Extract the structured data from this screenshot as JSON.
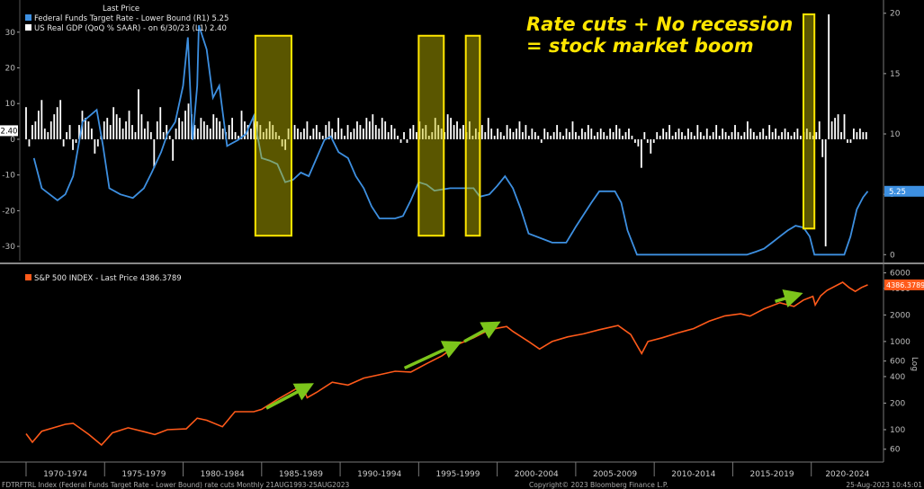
{
  "chart_data": [
    {
      "type": "line",
      "legend_header": "Last Price",
      "legend_placement": "top-left",
      "series": [
        {
          "name": "Federal Funds Target Rate - Lower Bound  (R1) 5.25",
          "axis": "right",
          "color": "#3d8fe0",
          "last_label": "5.25",
          "points": [
            [
              1970.5,
              8.0
            ],
            [
              1971.0,
              5.5
            ],
            [
              1971.5,
              5.0
            ],
            [
              1972.0,
              4.5
            ],
            [
              1972.5,
              5.0
            ],
            [
              1973.0,
              6.5
            ],
            [
              1973.6,
              11.0
            ],
            [
              1974.5,
              12.0
            ],
            [
              1974.9,
              9.0
            ],
            [
              1975.3,
              5.5
            ],
            [
              1976.0,
              5.0
            ],
            [
              1976.8,
              4.7
            ],
            [
              1977.5,
              5.5
            ],
            [
              1978.0,
              6.8
            ],
            [
              1978.6,
              8.5
            ],
            [
              1979.0,
              10.0
            ],
            [
              1979.5,
              11.0
            ],
            [
              1980.0,
              14.0
            ],
            [
              1980.3,
              18.0
            ],
            [
              1980.6,
              9.5
            ],
            [
              1980.9,
              14.0
            ],
            [
              1981.0,
              19.0
            ],
            [
              1981.5,
              17.0
            ],
            [
              1981.9,
              13.0
            ],
            [
              1982.3,
              14.0
            ],
            [
              1982.8,
              9.0
            ],
            [
              1983.5,
              9.5
            ],
            [
              1984.0,
              10.0
            ],
            [
              1984.5,
              11.5
            ],
            [
              1985.0,
              8.0
            ],
            [
              1985.5,
              7.8
            ],
            [
              1986.0,
              7.5
            ],
            [
              1986.5,
              6.0
            ],
            [
              1987.0,
              6.2
            ],
            [
              1987.5,
              6.8
            ],
            [
              1988.0,
              6.5
            ],
            [
              1988.5,
              8.0
            ],
            [
              1989.0,
              9.5
            ],
            [
              1989.4,
              9.8
            ],
            [
              1989.9,
              8.5
            ],
            [
              1990.5,
              8.0
            ],
            [
              1991.0,
              6.5
            ],
            [
              1991.5,
              5.5
            ],
            [
              1992.0,
              4.0
            ],
            [
              1992.5,
              3.0
            ],
            [
              1993.5,
              3.0
            ],
            [
              1994.0,
              3.2
            ],
            [
              1994.5,
              4.5
            ],
            [
              1995.0,
              6.0
            ],
            [
              1995.5,
              5.8
            ],
            [
              1996.0,
              5.3
            ],
            [
              1997.0,
              5.5
            ],
            [
              1998.5,
              5.5
            ],
            [
              1998.9,
              4.8
            ],
            [
              1999.5,
              5.0
            ],
            [
              2000.0,
              5.7
            ],
            [
              2000.5,
              6.5
            ],
            [
              2001.0,
              5.5
            ],
            [
              2001.5,
              3.8
            ],
            [
              2002.0,
              1.75
            ],
            [
              2003.0,
              1.25
            ],
            [
              2003.5,
              1.0
            ],
            [
              2004.4,
              1.0
            ],
            [
              2005.0,
              2.3
            ],
            [
              2006.0,
              4.3
            ],
            [
              2006.5,
              5.25
            ],
            [
              2007.5,
              5.25
            ],
            [
              2007.9,
              4.3
            ],
            [
              2008.3,
              2.0
            ],
            [
              2008.9,
              0.0
            ],
            [
              2015.9,
              0.0
            ],
            [
              2016.5,
              0.25
            ],
            [
              2017.0,
              0.5
            ],
            [
              2017.5,
              1.0
            ],
            [
              2018.0,
              1.5
            ],
            [
              2018.5,
              2.0
            ],
            [
              2019.0,
              2.4
            ],
            [
              2019.5,
              2.25
            ],
            [
              2019.9,
              1.5
            ],
            [
              2020.2,
              0.0
            ],
            [
              2022.1,
              0.0
            ],
            [
              2022.5,
              1.5
            ],
            [
              2022.9,
              3.75
            ],
            [
              2023.3,
              4.75
            ],
            [
              2023.6,
              5.25
            ]
          ]
        },
        {
          "name": "US Real GDP (QoQ % SAAR) - on 6/30/23  (L1) 2.40",
          "axis": "left",
          "color": "#ffffff",
          "last_label": "2.40",
          "values": [
            9,
            -2,
            4,
            5,
            8,
            11,
            3,
            2,
            5,
            7,
            9,
            11,
            -2,
            2,
            4,
            -3,
            -1,
            4,
            8,
            6,
            5,
            3,
            -4,
            -2,
            1,
            5,
            6,
            4,
            9,
            7,
            6,
            3,
            5,
            8,
            4,
            2,
            14,
            7,
            3,
            5,
            2,
            -8,
            5,
            9,
            2,
            4,
            1,
            -6,
            3,
            6,
            5,
            8,
            10,
            7,
            4,
            3,
            6,
            5,
            4,
            3,
            7,
            6,
            5,
            3,
            2,
            4,
            6,
            2,
            1,
            8,
            5,
            4,
            3,
            6,
            5,
            4,
            2,
            3,
            5,
            4,
            2,
            1,
            -2,
            -3,
            3,
            2,
            4,
            3,
            2,
            3,
            5,
            1,
            3,
            4,
            2,
            1,
            4,
            5,
            3,
            2,
            6,
            3,
            1,
            4,
            2,
            3,
            5,
            4,
            3,
            6,
            5,
            7,
            4,
            3,
            6,
            5,
            2,
            4,
            3,
            1,
            -1,
            2,
            -1,
            3,
            4,
            2,
            5,
            3,
            4,
            1,
            2,
            6,
            4,
            3,
            2,
            7,
            6,
            4,
            5,
            3,
            4,
            2,
            5,
            1,
            3,
            2,
            4,
            2,
            6,
            3,
            1,
            3,
            2,
            1,
            4,
            3,
            2,
            3,
            5,
            2,
            4,
            1,
            3,
            2,
            1,
            -1,
            3,
            2,
            1,
            2,
            4,
            2,
            1,
            3,
            2,
            5,
            2,
            1,
            3,
            2,
            4,
            3,
            1,
            2,
            3,
            2,
            1,
            3,
            2,
            4,
            3,
            1,
            2,
            3,
            1,
            -1,
            -2,
            -8,
            2,
            -1,
            -4,
            -1,
            2,
            1,
            3,
            2,
            4,
            1,
            2,
            3,
            2,
            1,
            3,
            2,
            1,
            4,
            2,
            1,
            3,
            1,
            2,
            4,
            1,
            3,
            2,
            1,
            2,
            4,
            2,
            1,
            2,
            5,
            3,
            2,
            1,
            2,
            3,
            1,
            4,
            2,
            3,
            1,
            2,
            3,
            2,
            1,
            2,
            3,
            1,
            2,
            3,
            2,
            1,
            2,
            5,
            -5,
            -30,
            35,
            5,
            6,
            7,
            2,
            7,
            -1,
            -1,
            3,
            2,
            3,
            2,
            2
          ]
        }
      ],
      "y_left": {
        "ticks": [
          30,
          20,
          10,
          0,
          -10,
          -20,
          -30
        ],
        "range": [
          -34,
          38
        ]
      },
      "y_right": {
        "ticks": [
          20,
          15,
          10,
          5,
          0
        ],
        "range": [
          -0.5,
          20.8
        ]
      },
      "x_range": [
        1969.6,
        2024.6
      ],
      "highlight_boxes": [
        {
          "x0": 1984.6,
          "x1": 1986.9,
          "y0": -27,
          "y1": 29
        },
        {
          "x0": 1995.0,
          "x1": 1996.6,
          "y0": -27,
          "y1": 29
        },
        {
          "x0": 1998.0,
          "x1": 1998.9,
          "y0": -27,
          "y1": 29
        },
        {
          "x0": 2019.5,
          "x1": 2020.2,
          "y0": -25,
          "y1": 35
        }
      ],
      "annotation": [
        "Rate cuts + No recession",
        "= stock market boom"
      ],
      "annotation_color": "#ffe600"
    },
    {
      "type": "line",
      "scale": "log",
      "series": [
        {
          "name": "S&P 500 INDEX - Last Price 4386.3789",
          "color": "#ff5a1a",
          "last_label": "4386.3789",
          "points": [
            [
              1970.0,
              90
            ],
            [
              1970.4,
              72
            ],
            [
              1971.0,
              96
            ],
            [
              1972.5,
              115
            ],
            [
              1973.0,
              118
            ],
            [
              1974.0,
              88
            ],
            [
              1974.8,
              67
            ],
            [
              1975.5,
              92
            ],
            [
              1976.5,
              105
            ],
            [
              1977.5,
              95
            ],
            [
              1978.2,
              88
            ],
            [
              1979.0,
              100
            ],
            [
              1980.2,
              102
            ],
            [
              1980.9,
              135
            ],
            [
              1981.5,
              128
            ],
            [
              1982.5,
              108
            ],
            [
              1983.3,
              160
            ],
            [
              1984.5,
              160
            ],
            [
              1985.0,
              170
            ],
            [
              1986.0,
              220
            ],
            [
              1987.6,
              320
            ],
            [
              1987.9,
              230
            ],
            [
              1988.5,
              265
            ],
            [
              1989.5,
              345
            ],
            [
              1990.5,
              320
            ],
            [
              1991.5,
              385
            ],
            [
              1992.5,
              420
            ],
            [
              1993.5,
              460
            ],
            [
              1994.5,
              450
            ],
            [
              1995.5,
              560
            ],
            [
              1996.5,
              690
            ],
            [
              1997.5,
              930
            ],
            [
              1998.5,
              1100
            ],
            [
              1999.5,
              1360
            ],
            [
              2000.6,
              1480
            ],
            [
              2001.0,
              1300
            ],
            [
              2002.0,
              1000
            ],
            [
              2002.7,
              820
            ],
            [
              2003.5,
              1000
            ],
            [
              2004.5,
              1130
            ],
            [
              2005.5,
              1220
            ],
            [
              2006.5,
              1360
            ],
            [
              2007.7,
              1520
            ],
            [
              2008.5,
              1200
            ],
            [
              2009.2,
              730
            ],
            [
              2009.6,
              1000
            ],
            [
              2010.5,
              1100
            ],
            [
              2011.5,
              1250
            ],
            [
              2012.5,
              1400
            ],
            [
              2013.5,
              1700
            ],
            [
              2014.5,
              1950
            ],
            [
              2015.5,
              2060
            ],
            [
              2016.1,
              1940
            ],
            [
              2017.0,
              2350
            ],
            [
              2018.0,
              2750
            ],
            [
              2018.9,
              2500
            ],
            [
              2019.5,
              2950
            ],
            [
              2020.1,
              3250
            ],
            [
              2020.25,
              2600
            ],
            [
              2020.6,
              3300
            ],
            [
              2021.0,
              3800
            ],
            [
              2022.0,
              4700
            ],
            [
              2022.4,
              4100
            ],
            [
              2022.8,
              3700
            ],
            [
              2023.2,
              4100
            ],
            [
              2023.6,
              4386
            ]
          ]
        }
      ],
      "y_ticks": [
        6000,
        4000,
        2000,
        1000,
        600,
        400,
        200,
        100,
        60
      ],
      "range": [
        45,
        7000
      ],
      "ylabel": "Log",
      "x_tick_labels": [
        "1970-1974",
        "1975-1979",
        "1980-1984",
        "1985-1989",
        "1990-1994",
        "1995-1999",
        "2000-2004",
        "2005-2009",
        "2010-2014",
        "2015-2019",
        "2020-2024"
      ],
      "arrows": [
        {
          "x0": 1985.3,
          "y0": 175,
          "x1": 1987.8,
          "y1": 300
        },
        {
          "x0": 1994.1,
          "y0": 500,
          "x1": 1997.2,
          "y1": 900
        },
        {
          "x0": 1997.9,
          "y0": 1000,
          "x1": 1999.7,
          "y1": 1500
        },
        {
          "x0": 2017.7,
          "y0": 2850,
          "x1": 2018.9,
          "y1": 3300
        }
      ],
      "arrow_color": "#7cc51b"
    }
  ],
  "footer": {
    "left": "FDTRFTRL Index (Federal Funds Target Rate - Lower Bound) rate cuts  Monthly 21AUG1993-25AUG2023",
    "center": "Copyright© 2023 Bloomberg Finance L.P.",
    "right": "25-Aug-2023 10:45:01"
  }
}
